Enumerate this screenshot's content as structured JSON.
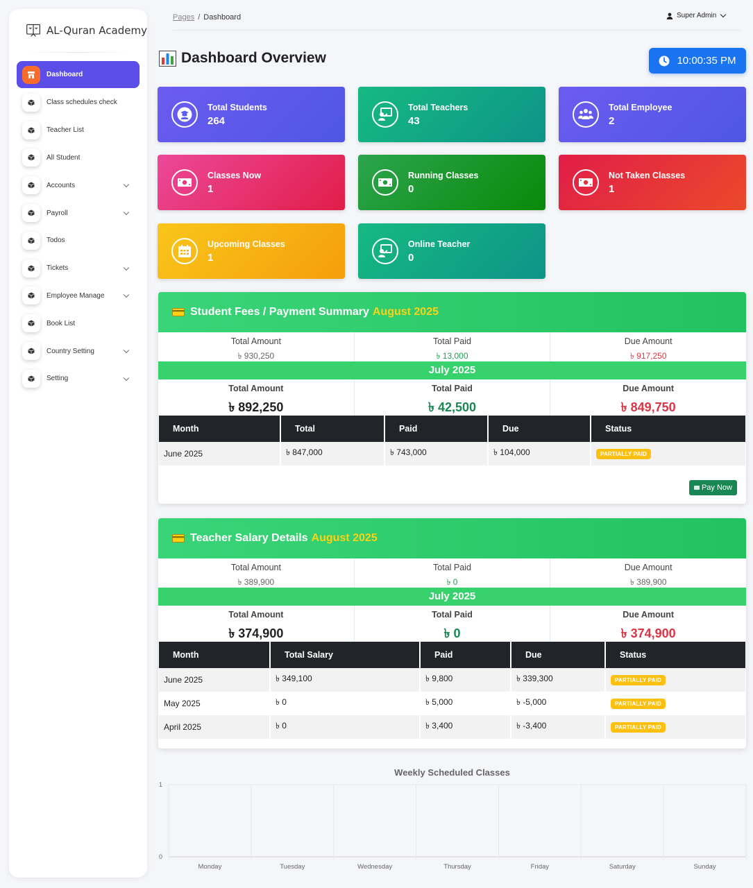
{
  "brand": {
    "name": "AL-Quran Academy",
    "icon": "academy-logo-icon"
  },
  "sidebar": {
    "items": [
      {
        "label": "Dashboard",
        "icon": "store-icon",
        "active": true
      },
      {
        "label": "Class schedules check",
        "icon": "cube-icon"
      },
      {
        "label": "Teacher List",
        "icon": "cube-icon"
      },
      {
        "label": "All Student",
        "icon": "cube-icon"
      },
      {
        "label": "Accounts",
        "icon": "cube-icon",
        "expandable": true
      },
      {
        "label": "Payroll",
        "icon": "cube-icon",
        "expandable": true
      },
      {
        "label": "Todos",
        "icon": "cube-icon"
      },
      {
        "label": "Tickets",
        "icon": "cube-icon",
        "expandable": true
      },
      {
        "label": "Employee Manage",
        "icon": "cube-icon",
        "expandable": true
      },
      {
        "label": "Book List",
        "icon": "cube-icon"
      },
      {
        "label": "Country Setting",
        "icon": "cube-icon",
        "expandable": true
      },
      {
        "label": "Setting",
        "icon": "cube-icon",
        "expandable": true
      }
    ]
  },
  "header": {
    "breadcrumb": {
      "parent": "Pages",
      "separator": "/",
      "current": "Dashboard"
    },
    "user": "Super Admin",
    "title": "Dashboard Overview",
    "clock": "10:00:35 PM"
  },
  "cards": [
    {
      "label": "Total Students",
      "value": "264",
      "icon": "graduate-icon",
      "color": "#5b5cf0"
    },
    {
      "label": "Total Teachers",
      "value": "43",
      "icon": "teacher-board-icon",
      "color": "#10a37f"
    },
    {
      "label": "Total Employee",
      "value": "2",
      "icon": "users-group-icon",
      "color": "#5b5cf0"
    },
    {
      "label": "Classes Now",
      "value": "1",
      "icon": "money-bill-icon",
      "color": "#e9337a"
    },
    {
      "label": "Running Classes",
      "value": "0",
      "icon": "money-bill-icon",
      "color": "#1f9a3a"
    },
    {
      "label": "Not Taken Classes",
      "value": "1",
      "icon": "money-bill-icon",
      "color": "#e5303c"
    },
    {
      "label": "Upcoming Classes",
      "value": "1",
      "icon": "calendar-icon",
      "color": "#f7b214"
    },
    {
      "label": "Online Teacher",
      "value": "0",
      "icon": "teacher-board-icon",
      "color": "#10a37f"
    }
  ],
  "fees": {
    "title": "Student Fees / Payment Summary",
    "month": "August 2025",
    "summary": [
      {
        "label": "Total Amount",
        "value": "৳ 930,250"
      },
      {
        "label": "Total Paid",
        "value": "৳ 13,000"
      },
      {
        "label": "Due Amount",
        "value": "৳ 917,250"
      }
    ],
    "sub_month": "July 2025",
    "big": [
      {
        "label": "Total Amount",
        "value": "৳ 892,250"
      },
      {
        "label": "Total Paid",
        "value": "৳ 42,500"
      },
      {
        "label": "Due Amount",
        "value": "৳ 849,750"
      }
    ],
    "columns": [
      "Month",
      "Total",
      "Paid",
      "Due",
      "Status"
    ],
    "rows": [
      {
        "month": "June 2025",
        "total": "৳ 847,000",
        "paid": "৳ 743,000",
        "due": "৳ 104,000",
        "status": "PARTIALLY PAID"
      }
    ],
    "pay_button": "Pay Now"
  },
  "salary": {
    "title": "Teacher Salary Details",
    "month": "August 2025",
    "summary": [
      {
        "label": "Total Amount",
        "value": "৳ 389,900"
      },
      {
        "label": "Total Paid",
        "value": "৳ 0"
      },
      {
        "label": "Due Amount",
        "value": "৳ 389,900"
      }
    ],
    "sub_month": "July 2025",
    "big": [
      {
        "label": "Total Amount",
        "value": "৳ 374,900"
      },
      {
        "label": "Total Paid",
        "value": "৳ 0"
      },
      {
        "label": "Due Amount",
        "value": "৳ 374,900"
      }
    ],
    "columns": [
      "Month",
      "Total Salary",
      "Paid",
      "Due",
      "Status"
    ],
    "rows": [
      {
        "month": "June 2025",
        "total": "৳ 349,100",
        "paid": "৳ 9,800",
        "due": "৳ 339,300",
        "status": "PARTIALLY PAID"
      },
      {
        "month": "May 2025",
        "total": "৳ 0",
        "paid": "৳ 5,000",
        "due": "৳ -5,000",
        "status": "PARTIALLY PAID"
      },
      {
        "month": "April 2025",
        "total": "৳ 0",
        "paid": "৳ 3,400",
        "due": "৳ -3,400",
        "status": "PARTIALLY PAID"
      }
    ]
  },
  "chart_data": {
    "type": "bar",
    "title": "Weekly Scheduled Classes",
    "categories": [
      "Monday",
      "Tuesday",
      "Wednesday",
      "Thursday",
      "Friday",
      "Saturday",
      "Sunday"
    ],
    "values": [
      0,
      0,
      0,
      0,
      0,
      0,
      0
    ],
    "ylim": [
      0,
      1
    ],
    "yticks": [
      "0",
      "1"
    ],
    "grid": true
  },
  "colors": {
    "active_nav": "#5b4ee8",
    "active_icon": "#fb6b2c",
    "panel_head": "#2ecc68",
    "month_highlight": "#fcd116",
    "clock": "#1a73f0",
    "badge": "#fdc010",
    "pay": "#198754",
    "due": "#dc3545"
  }
}
